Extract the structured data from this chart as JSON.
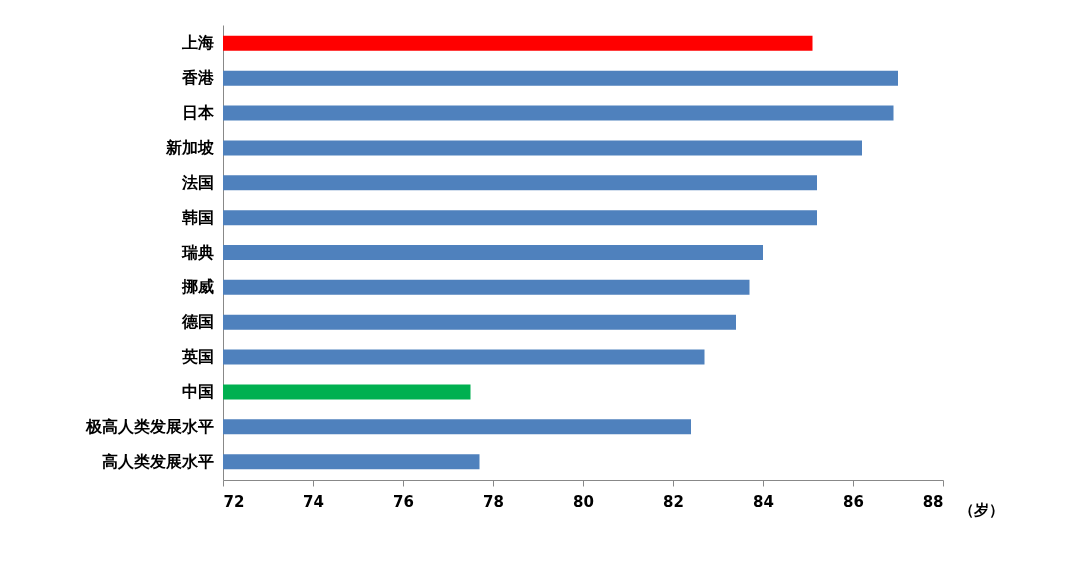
{
  "chart_data": {
    "type": "bar",
    "orientation": "horizontal",
    "xlabel": "（岁）",
    "categories": [
      "上海",
      "香港",
      "日本",
      "新加坡",
      "法国",
      "韩国",
      "瑞典",
      "挪威",
      "德国",
      "英国",
      "中国",
      "极高人类发展水平",
      "高人类发展水平"
    ],
    "values": [
      85.1,
      87.0,
      86.9,
      86.2,
      85.2,
      85.2,
      84.0,
      83.7,
      83.4,
      82.7,
      77.5,
      82.4,
      77.7
    ],
    "colors": [
      "#ff0000",
      "#4f81bd",
      "#4f81bd",
      "#4f81bd",
      "#4f81bd",
      "#4f81bd",
      "#4f81bd",
      "#4f81bd",
      "#4f81bd",
      "#4f81bd",
      "#00b050",
      "#4f81bd",
      "#4f81bd"
    ],
    "xlim": [
      72,
      88
    ],
    "xticks": [
      72,
      74,
      76,
      78,
      80,
      82,
      84,
      86,
      88
    ],
    "grid": false
  }
}
